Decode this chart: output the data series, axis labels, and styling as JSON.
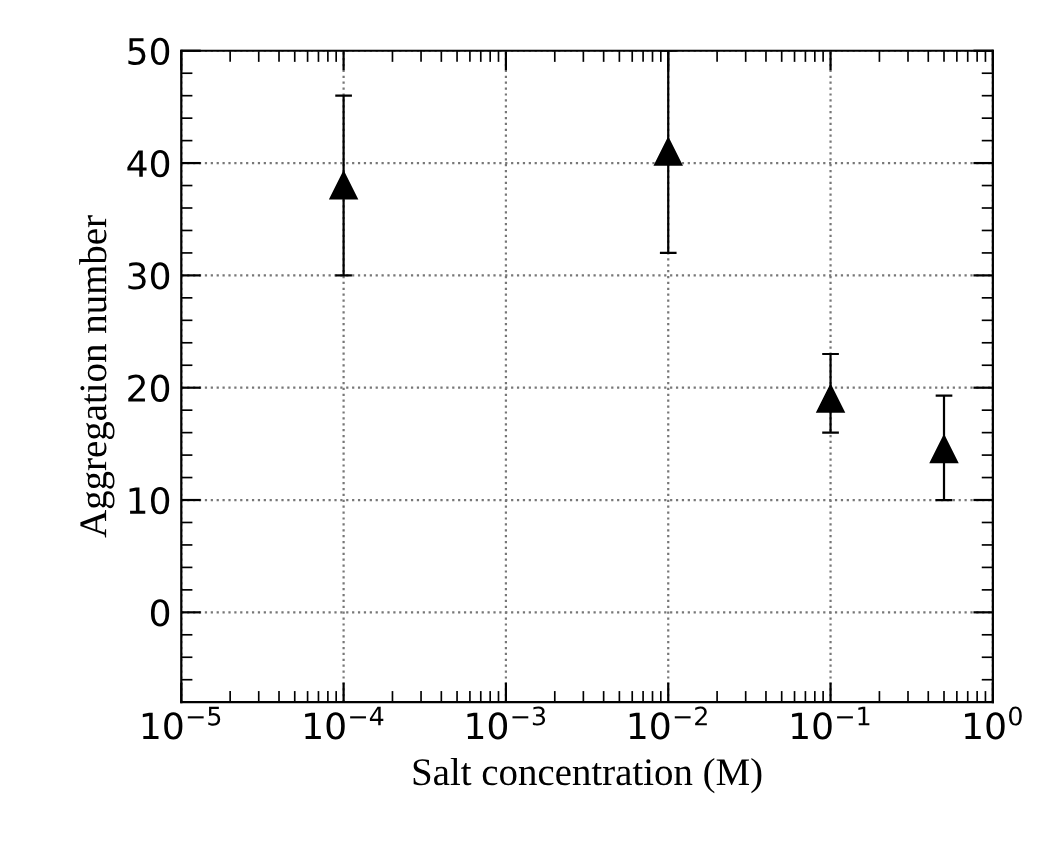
{
  "chart_data": {
    "type": "scatter",
    "xlabel": "Salt concentration (M)",
    "ylabel": "Aggregation number",
    "x": [
      0.0001,
      0.01,
      0.1,
      0.5
    ],
    "values": [
      38,
      41,
      19,
      14.5
    ],
    "errors": [
      [
        30,
        46
      ],
      [
        32,
        50
      ],
      [
        16,
        23
      ],
      [
        10,
        19.3
      ]
    ],
    "color": "#000000",
    "marker": "triangle",
    "log": "x",
    "xlim": [
      1e-05,
      1
    ],
    "ylim": [
      -8,
      50
    ],
    "xticks": [
      {
        "value": 1e-05,
        "label": "10$^{−5}$"
      },
      {
        "value": 0.0001,
        "label": "10$^{−4}$"
      },
      {
        "value": 0.001,
        "label": "10$^{−3}$"
      },
      {
        "value": 0.01,
        "label": "10$^{−2}$"
      },
      {
        "value": 0.1,
        "label": "10$^{−1}$"
      },
      {
        "value": 1,
        "label": "10$^{0}$"
      }
    ],
    "yticks": [
      0,
      10,
      20,
      30,
      40,
      50
    ],
    "grid": true
  }
}
